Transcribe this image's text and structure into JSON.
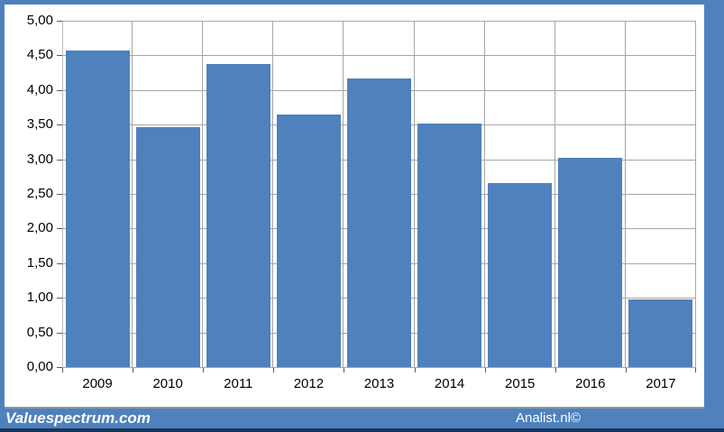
{
  "branding": {
    "left": "Valuespectrum.com",
    "right": "Analist.nl©"
  },
  "colors": {
    "bar": "#4f81bd",
    "frame": "#4f81bd",
    "bottom_accent": "#17365d",
    "gridline": "#a6a6a6",
    "tick": "#595959",
    "text": "#000000",
    "canvas": "#ffffff"
  },
  "chart_data": {
    "type": "bar",
    "title": "",
    "xlabel": "",
    "ylabel": "",
    "categories": [
      "2009",
      "2010",
      "2011",
      "2012",
      "2013",
      "2014",
      "2015",
      "2016",
      "2017"
    ],
    "values": [
      4.57,
      3.46,
      4.37,
      3.65,
      4.17,
      3.51,
      2.66,
      3.02,
      0.98
    ],
    "ylim": [
      0,
      5
    ],
    "ytick_step": 0.5,
    "ytick_labels": [
      "0,00",
      "0,50",
      "1,00",
      "1,50",
      "2,00",
      "2,50",
      "3,00",
      "3,50",
      "4,00",
      "4,50",
      "5,00"
    ],
    "grid": true,
    "legend": "none",
    "decimal_separator": ","
  }
}
